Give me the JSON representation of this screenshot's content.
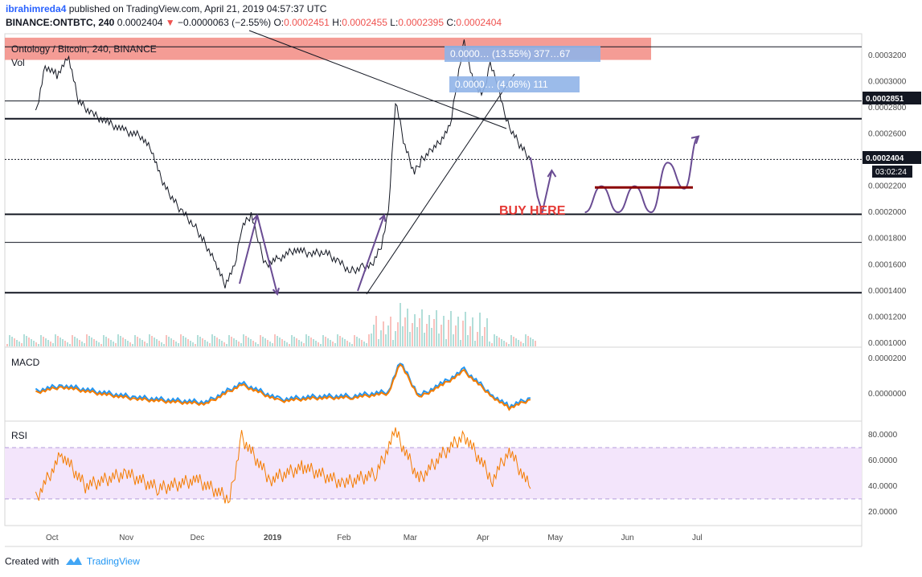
{
  "header": {
    "author": "ibrahimreda4",
    "publish_text": "published on TradingView.com, April 21, 2019 04:57:37 UTC",
    "symbol": "BINANCE:ONTBTC, 240",
    "last": "0.0002404",
    "change_arrow": "▼",
    "change": "−0.0000063 (−2.55%)",
    "o_label": "O:",
    "o_value": "0.0002451",
    "h_label": "H:",
    "h_value": "0.0002455",
    "l_label": "L:",
    "l_value": "0.0002395",
    "c_label": "C:",
    "c_value": "0.0002404"
  },
  "panes": {
    "main_title": "Ontology / Bitcoin, 240, BINANCE",
    "vol_label": "Vol",
    "macd_label": "MACD",
    "rsi_label": "RSI"
  },
  "annotations": {
    "buy_here": "BUY HERE",
    "measure_big": "0.0000…  (13.55%) 377…67",
    "measure_small": "0.0000…  (4.06%) 111"
  },
  "price_tags": {
    "resistance": "0.0002851",
    "current": "0.0002404",
    "countdown": "03:02:24"
  },
  "footer": {
    "created_with": "Created with",
    "brand": "TradingView"
  },
  "colors": {
    "price_line": "#131722",
    "macd": "#2196f3",
    "signal": "#f57c00",
    "rsi": "#f57c00",
    "rsi_band": "#f3e5fb",
    "forecast": "#6a4c93",
    "support_box": "#8b0000",
    "resistance_zone": "#f28b82",
    "buy_text": "#e53935"
  },
  "chart_data": {
    "type": "line",
    "title": "Ontology / Bitcoin, 240, BINANCE",
    "x_ticks": [
      "Oct",
      "Nov",
      "Dec",
      "2019",
      "Feb",
      "Mar",
      "Apr",
      "May",
      "Jun",
      "Jul"
    ],
    "price_axis": {
      "ticks": [
        "0.0003200",
        "0.0003000",
        "0.0002800",
        "0.0002600",
        "0.0002400",
        "0.0002200",
        "0.0002000",
        "0.0001800",
        "0.0001600",
        "0.0001400",
        "0.0001200",
        "0.0001000"
      ],
      "ylim": [
        9.75e-05,
        0.0003365
      ]
    },
    "macd_axis": {
      "ticks": [
        "0.0000200",
        "0.0000000"
      ]
    },
    "rsi_axis": {
      "ticks": [
        "80.0000",
        "60.0000",
        "40.0000",
        "20.0000"
      ],
      "ylim": [
        8,
        90
      ],
      "bands": [
        30,
        70
      ]
    },
    "series": [
      {
        "name": "ONTBTC",
        "points": [
          [
            "2018-09-24",
            0.000275
          ],
          [
            "2018-09-28",
            0.000312
          ],
          [
            "2018-10-03",
            0.000305
          ],
          [
            "2018-10-08",
            0.000318
          ],
          [
            "2018-10-12",
            0.000285
          ],
          [
            "2018-10-18",
            0.000275
          ],
          [
            "2018-10-25",
            0.000268
          ],
          [
            "2018-11-01",
            0.000262
          ],
          [
            "2018-11-08",
            0.000258
          ],
          [
            "2018-11-12",
            0.000248
          ],
          [
            "2018-11-16",
            0.000225
          ],
          [
            "2018-11-20",
            0.000212
          ],
          [
            "2018-11-25",
            0.0002
          ],
          [
            "2018-11-30",
            0.00019
          ],
          [
            "2018-12-04",
            0.000178
          ],
          [
            "2018-12-09",
            0.000162
          ],
          [
            "2018-12-13",
            0.000145
          ],
          [
            "2018-12-17",
            0.000158
          ],
          [
            "2018-12-20",
            0.000188
          ],
          [
            "2018-12-24",
            0.000198
          ],
          [
            "2018-12-27",
            0.000178
          ],
          [
            "2018-12-30",
            0.00016
          ],
          [
            "2019-01-05",
            0.000165
          ],
          [
            "2019-01-12",
            0.000172
          ],
          [
            "2019-01-18",
            0.000168
          ],
          [
            "2019-01-24",
            0.00017
          ],
          [
            "2019-01-30",
            0.000162
          ],
          [
            "2019-02-04",
            0.000155
          ],
          [
            "2019-02-09",
            0.000158
          ],
          [
            "2019-02-13",
            0.00016
          ],
          [
            "2019-02-17",
            0.000175
          ],
          [
            "2019-02-20",
            0.0002
          ],
          [
            "2019-02-23",
            0.000285
          ],
          [
            "2019-02-27",
            0.00025
          ],
          [
            "2019-03-03",
            0.00023
          ],
          [
            "2019-03-06",
            0.00024
          ],
          [
            "2019-03-10",
            0.000248
          ],
          [
            "2019-03-14",
            0.000255
          ],
          [
            "2019-03-18",
            0.000265
          ],
          [
            "2019-03-21",
            0.0003
          ],
          [
            "2019-03-24",
            0.00033
          ],
          [
            "2019-03-28",
            0.0003
          ],
          [
            "2019-04-01",
            0.00029
          ],
          [
            "2019-04-04",
            0.000315
          ],
          [
            "2019-04-07",
            0.0003
          ],
          [
            "2019-04-10",
            0.000275
          ],
          [
            "2019-04-13",
            0.000262
          ],
          [
            "2019-04-17",
            0.00025
          ],
          [
            "2019-04-21",
            0.0002404
          ]
        ]
      },
      {
        "name": "MACD",
        "points": [
          [
            "2018-09-24",
            4e-07
          ],
          [
            "2018-10-05",
            1.2e-06
          ],
          [
            "2018-10-20",
            3e-07
          ],
          [
            "2018-11-05",
            -5e-07
          ],
          [
            "2018-11-20",
            -9e-07
          ],
          [
            "2018-12-05",
            -1.2e-06
          ],
          [
            "2018-12-20",
            1.5e-06
          ],
          [
            "2019-01-05",
            -8e-07
          ],
          [
            "2019-01-20",
            -4e-07
          ],
          [
            "2019-02-05",
            -3e-07
          ],
          [
            "2019-02-20",
            3e-07
          ],
          [
            "2019-02-25",
            4.5e-06
          ],
          [
            "2019-03-05",
            -3e-07
          ],
          [
            "2019-03-15",
            1.5e-06
          ],
          [
            "2019-03-24",
            3.4e-06
          ],
          [
            "2019-04-05",
            -2e-07
          ],
          [
            "2019-04-12",
            -1.8e-06
          ],
          [
            "2019-04-21",
            -6e-07
          ]
        ]
      },
      {
        "name": "RSI",
        "points": [
          [
            "2018-09-24",
            30
          ],
          [
            "2018-10-05",
            65
          ],
          [
            "2018-10-15",
            40
          ],
          [
            "2018-11-01",
            50
          ],
          [
            "2018-11-15",
            38
          ],
          [
            "2018-12-01",
            45
          ],
          [
            "2018-12-15",
            30
          ],
          [
            "2018-12-20",
            78
          ],
          [
            "2019-01-01",
            45
          ],
          [
            "2019-01-15",
            55
          ],
          [
            "2019-02-01",
            42
          ],
          [
            "2019-02-15",
            50
          ],
          [
            "2019-02-23",
            82
          ],
          [
            "2019-03-05",
            45
          ],
          [
            "2019-03-15",
            65
          ],
          [
            "2019-03-24",
            80
          ],
          [
            "2019-04-05",
            45
          ],
          [
            "2019-04-12",
            68
          ],
          [
            "2019-04-21",
            38
          ]
        ]
      }
    ],
    "levels": [
      0.0003265,
      0.0002851,
      0.0002715,
      0.0002404,
      0.0001985,
      0.000177,
      0.0001385
    ],
    "resistance_zone": [
      0.0003165,
      0.0003335
    ],
    "support_box_level": 0.000219,
    "forecast_path": [
      [
        "2019-04-21",
        0.000242
      ],
      [
        "2019-04-24",
        0.000212
      ],
      [
        "2019-04-26",
        0.0002
      ],
      [
        "2019-04-30",
        0.000232
      ]
    ],
    "forecast_wave": [
      [
        "2019-05-14",
        0.0002
      ],
      [
        "2019-05-21",
        0.00022
      ],
      [
        "2019-05-28",
        0.0002
      ],
      [
        "2019-06-04",
        0.00022
      ],
      [
        "2019-06-11",
        0.0002
      ],
      [
        "2019-06-18",
        0.000238
      ],
      [
        "2019-06-25",
        0.000218
      ],
      [
        "2019-07-01",
        0.000258
      ]
    ]
  }
}
